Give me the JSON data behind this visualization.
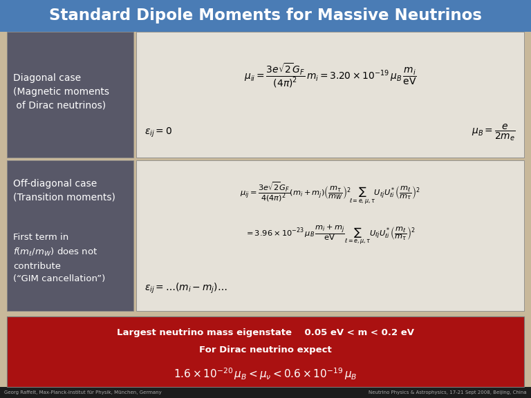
{
  "title": "Standard Dipole Moments for Massive Neutrinos",
  "title_bg": "#4a7cb5",
  "title_color": "#ffffff",
  "main_bg": "#c8b89a",
  "panel_bg": "#585868",
  "formula_bg": "#e5e1d8",
  "red_box_bg": "#aa1111",
  "footer_bg": "#1c1c1c",
  "footer_left": "Georg Raffelt, Max-Planck-Institut für Physik, München, Germany",
  "footer_right": "Neutrino Physics & Astrophysics, 17-21 Sept 2008, Beijing, China",
  "diag_label": "Diagonal case\n(Magnetic moments\n of Dirac neutrinos)",
  "diag_formula1": "$\\mu_{ii} = \\dfrac{3e\\sqrt{2}G_F}{(4\\pi)^2}\\, m_i = 3.20 \\times 10^{-19}\\, \\mu_B\\, \\dfrac{m_i}{\\mathrm{eV}}$",
  "diag_formula2": "$\\varepsilon_{ij} = 0$",
  "diag_formula3": "$\\mu_B = \\dfrac{e}{2m_e}$",
  "offdiag_title": "Off-diagonal case\n(Transition moments)",
  "offdiag_sub": "First term in\n$f(m_\\ell/m_W)$ does not\ncontribute\n(“GIM cancellation”)",
  "offdiag_formula1": "$\\mu_{ij} = \\dfrac{3e\\sqrt{2}G_F}{4(4\\pi)^2}(m_i+m_j)\\left(\\dfrac{m_\\tau}{m_W}\\right)^2 \\!\\sum_{\\ell=e,\\mu,\\tau} U_{\\ell j} U^*_{\\ell i}\\left(\\dfrac{m_\\ell}{m_\\tau}\\right)^2$",
  "offdiag_formula2": "$= 3.96 \\times 10^{-23}\\, \\mu_B\\, \\dfrac{m_i+m_j}{\\mathrm{eV}} \\sum_{\\ell=e,\\mu,\\tau} U_{\\ell j} U^*_{\\ell i}\\left(\\dfrac{m_\\ell}{m_\\tau}\\right)^2$",
  "offdiag_formula3": "$\\varepsilon_{ij} = \\ldots (m_i - m_j) \\ldots$",
  "red_text1": "Largest neutrino mass eigenstate    0.05 eV < m < 0.2 eV",
  "red_text2": "For Dirac neutrino expect",
  "red_formula": "$1.6 \\times 10^{-20}\\, \\mu_B < \\mu_\\nu < 0.6 \\times 10^{-19}\\, \\mu_B$"
}
